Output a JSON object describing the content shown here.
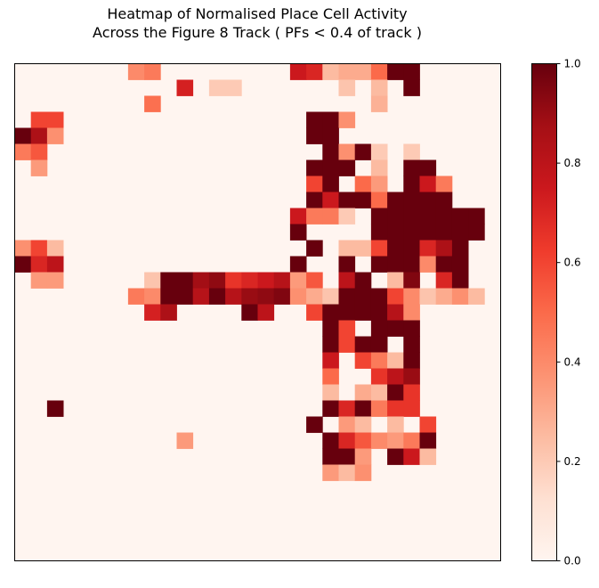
{
  "chart_data": {
    "type": "heatmap",
    "title_lines": [
      "Heatmap of Normalised Place Cell Activity",
      "Across the Figure 8 Track ( PFs < 0.4 of track )"
    ],
    "xlabel": "",
    "ylabel": "",
    "rows": 31,
    "cols": 30,
    "colormap": "Reds",
    "colormap_stops": [
      [
        0.0,
        "#fff5f0"
      ],
      [
        0.125,
        "#fee0d2"
      ],
      [
        0.25,
        "#fcbba1"
      ],
      [
        0.375,
        "#fc9272"
      ],
      [
        0.5,
        "#fb6a4a"
      ],
      [
        0.625,
        "#ef3b2c"
      ],
      [
        0.75,
        "#cb181d"
      ],
      [
        0.875,
        "#a50f15"
      ],
      [
        1.0,
        "#67000d"
      ]
    ],
    "vmin": 0.0,
    "vmax": 1.0,
    "colorbar_ticks": [
      {
        "value": 0.0,
        "label": "0.0"
      },
      {
        "value": 0.2,
        "label": "0.2"
      },
      {
        "value": 0.4,
        "label": "0.4"
      },
      {
        "value": 0.6,
        "label": "0.6"
      },
      {
        "value": 0.8,
        "label": "0.8"
      },
      {
        "value": 1.0,
        "label": "1.0"
      }
    ],
    "cells": [
      [
        0,
        7,
        0.4
      ],
      [
        0,
        8,
        0.45
      ],
      [
        0,
        17,
        0.75
      ],
      [
        0,
        18,
        0.7
      ],
      [
        0,
        19,
        0.25
      ],
      [
        0,
        20,
        0.3
      ],
      [
        0,
        21,
        0.3
      ],
      [
        0,
        22,
        0.5
      ],
      [
        0,
        23,
        1.0
      ],
      [
        0,
        24,
        1.0
      ],
      [
        1,
        10,
        0.72
      ],
      [
        1,
        12,
        0.2
      ],
      [
        1,
        13,
        0.2
      ],
      [
        1,
        20,
        0.22
      ],
      [
        1,
        22,
        0.25
      ],
      [
        1,
        24,
        1.0
      ],
      [
        2,
        8,
        0.48
      ],
      [
        2,
        22,
        0.28
      ],
      [
        3,
        1,
        0.6
      ],
      [
        3,
        2,
        0.6
      ],
      [
        3,
        18,
        1.0
      ],
      [
        3,
        19,
        1.0
      ],
      [
        3,
        20,
        0.38
      ],
      [
        4,
        0,
        1.0
      ],
      [
        4,
        1,
        0.85
      ],
      [
        4,
        2,
        0.38
      ],
      [
        4,
        18,
        1.0
      ],
      [
        4,
        19,
        1.0
      ],
      [
        5,
        0,
        0.45
      ],
      [
        5,
        1,
        0.55
      ],
      [
        5,
        19,
        1.0
      ],
      [
        5,
        20,
        0.38
      ],
      [
        5,
        21,
        1.0
      ],
      [
        5,
        22,
        0.2
      ],
      [
        5,
        24,
        0.2
      ],
      [
        6,
        1,
        0.35
      ],
      [
        6,
        18,
        1.0
      ],
      [
        6,
        19,
        1.0
      ],
      [
        6,
        20,
        1.0
      ],
      [
        6,
        22,
        0.25
      ],
      [
        6,
        24,
        1.0
      ],
      [
        6,
        25,
        1.0
      ],
      [
        7,
        18,
        0.6
      ],
      [
        7,
        19,
        1.0
      ],
      [
        7,
        21,
        0.5
      ],
      [
        7,
        22,
        0.35
      ],
      [
        7,
        24,
        1.0
      ],
      [
        7,
        25,
        0.75
      ],
      [
        7,
        26,
        0.45
      ],
      [
        8,
        18,
        1.0
      ],
      [
        8,
        19,
        0.75
      ],
      [
        8,
        20,
        1.0
      ],
      [
        8,
        21,
        1.0
      ],
      [
        8,
        22,
        0.5
      ],
      [
        8,
        23,
        1.0
      ],
      [
        8,
        24,
        1.0
      ],
      [
        8,
        25,
        1.0
      ],
      [
        8,
        26,
        1.0
      ],
      [
        9,
        17,
        0.75
      ],
      [
        9,
        18,
        0.45
      ],
      [
        9,
        19,
        0.45
      ],
      [
        9,
        20,
        0.2
      ],
      [
        9,
        22,
        1.0
      ],
      [
        9,
        23,
        1.0
      ],
      [
        9,
        24,
        1.0
      ],
      [
        9,
        25,
        1.0
      ],
      [
        9,
        26,
        1.0
      ],
      [
        9,
        27,
        1.0
      ],
      [
        9,
        28,
        1.0
      ],
      [
        10,
        17,
        1.0
      ],
      [
        10,
        22,
        1.0
      ],
      [
        10,
        23,
        1.0
      ],
      [
        10,
        24,
        1.0
      ],
      [
        10,
        25,
        1.0
      ],
      [
        10,
        26,
        1.0
      ],
      [
        10,
        27,
        1.0
      ],
      [
        10,
        28,
        1.0
      ],
      [
        11,
        0,
        0.38
      ],
      [
        11,
        1,
        0.6
      ],
      [
        11,
        2,
        0.25
      ],
      [
        11,
        18,
        1.0
      ],
      [
        11,
        20,
        0.25
      ],
      [
        11,
        21,
        0.25
      ],
      [
        11,
        22,
        0.6
      ],
      [
        11,
        23,
        1.0
      ],
      [
        11,
        24,
        1.0
      ],
      [
        11,
        25,
        0.7
      ],
      [
        11,
        26,
        0.85
      ],
      [
        11,
        27,
        1.0
      ],
      [
        12,
        0,
        1.0
      ],
      [
        12,
        1,
        0.7
      ],
      [
        12,
        2,
        0.8
      ],
      [
        12,
        17,
        1.0
      ],
      [
        12,
        20,
        1.0
      ],
      [
        12,
        22,
        1.0
      ],
      [
        12,
        23,
        1.0
      ],
      [
        12,
        24,
        1.0
      ],
      [
        12,
        25,
        0.4
      ],
      [
        12,
        26,
        1.0
      ],
      [
        12,
        27,
        1.0
      ],
      [
        13,
        1,
        0.35
      ],
      [
        13,
        2,
        0.35
      ],
      [
        13,
        8,
        0.22
      ],
      [
        13,
        9,
        1.0
      ],
      [
        13,
        10,
        1.0
      ],
      [
        13,
        11,
        0.88
      ],
      [
        13,
        12,
        0.92
      ],
      [
        13,
        13,
        0.65
      ],
      [
        13,
        14,
        0.7
      ],
      [
        13,
        15,
        0.75
      ],
      [
        13,
        16,
        0.82
      ],
      [
        13,
        17,
        0.35
      ],
      [
        13,
        18,
        0.55
      ],
      [
        13,
        20,
        0.8
      ],
      [
        13,
        21,
        1.0
      ],
      [
        13,
        23,
        0.25
      ],
      [
        13,
        24,
        0.95
      ],
      [
        13,
        26,
        0.7
      ],
      [
        13,
        27,
        1.0
      ],
      [
        14,
        7,
        0.45
      ],
      [
        14,
        8,
        0.4
      ],
      [
        14,
        9,
        1.0
      ],
      [
        14,
        10,
        1.0
      ],
      [
        14,
        11,
        0.82
      ],
      [
        14,
        12,
        1.0
      ],
      [
        14,
        13,
        0.82
      ],
      [
        14,
        14,
        0.9
      ],
      [
        14,
        15,
        0.92
      ],
      [
        14,
        16,
        0.95
      ],
      [
        14,
        17,
        0.38
      ],
      [
        14,
        18,
        0.3
      ],
      [
        14,
        19,
        0.22
      ],
      [
        14,
        20,
        1.0
      ],
      [
        14,
        21,
        1.0
      ],
      [
        14,
        22,
        1.0
      ],
      [
        14,
        23,
        0.6
      ],
      [
        14,
        24,
        0.4
      ],
      [
        14,
        25,
        0.22
      ],
      [
        14,
        26,
        0.3
      ],
      [
        14,
        27,
        0.38
      ],
      [
        14,
        28,
        0.25
      ],
      [
        15,
        8,
        0.72
      ],
      [
        15,
        9,
        0.85
      ],
      [
        15,
        14,
        1.0
      ],
      [
        15,
        15,
        0.8
      ],
      [
        15,
        18,
        0.6
      ],
      [
        15,
        19,
        1.0
      ],
      [
        15,
        20,
        1.0
      ],
      [
        15,
        21,
        1.0
      ],
      [
        15,
        22,
        1.0
      ],
      [
        15,
        23,
        0.82
      ],
      [
        15,
        24,
        0.4
      ],
      [
        16,
        19,
        1.0
      ],
      [
        16,
        20,
        0.6
      ],
      [
        16,
        22,
        1.0
      ],
      [
        16,
        23,
        1.0
      ],
      [
        16,
        24,
        1.0
      ],
      [
        17,
        19,
        1.0
      ],
      [
        17,
        20,
        0.6
      ],
      [
        17,
        21,
        1.0
      ],
      [
        17,
        22,
        1.0
      ],
      [
        17,
        24,
        1.0
      ],
      [
        18,
        19,
        0.75
      ],
      [
        18,
        21,
        0.6
      ],
      [
        18,
        22,
        0.45
      ],
      [
        18,
        23,
        0.25
      ],
      [
        18,
        24,
        1.0
      ],
      [
        19,
        19,
        0.5
      ],
      [
        19,
        22,
        0.65
      ],
      [
        19,
        23,
        0.8
      ],
      [
        19,
        24,
        0.9
      ],
      [
        20,
        19,
        0.25
      ],
      [
        20,
        21,
        0.3
      ],
      [
        20,
        22,
        0.25
      ],
      [
        20,
        23,
        1.0
      ],
      [
        20,
        24,
        0.65
      ],
      [
        21,
        2,
        1.0
      ],
      [
        21,
        19,
        1.0
      ],
      [
        21,
        20,
        0.7
      ],
      [
        21,
        21,
        1.0
      ],
      [
        21,
        22,
        0.45
      ],
      [
        21,
        23,
        0.65
      ],
      [
        21,
        24,
        0.65
      ],
      [
        22,
        18,
        1.0
      ],
      [
        22,
        20,
        0.35
      ],
      [
        22,
        21,
        0.25
      ],
      [
        22,
        23,
        0.25
      ],
      [
        22,
        25,
        0.6
      ],
      [
        23,
        10,
        0.35
      ],
      [
        23,
        19,
        1.0
      ],
      [
        23,
        20,
        0.7
      ],
      [
        23,
        21,
        0.55
      ],
      [
        23,
        22,
        0.4
      ],
      [
        23,
        23,
        0.35
      ],
      [
        23,
        24,
        0.45
      ],
      [
        23,
        25,
        1.0
      ],
      [
        24,
        19,
        1.0
      ],
      [
        24,
        20,
        1.0
      ],
      [
        24,
        21,
        0.35
      ],
      [
        24,
        23,
        1.0
      ],
      [
        24,
        24,
        0.75
      ],
      [
        24,
        25,
        0.25
      ],
      [
        25,
        19,
        0.35
      ],
      [
        25,
        20,
        0.25
      ],
      [
        25,
        21,
        0.38
      ]
    ]
  }
}
